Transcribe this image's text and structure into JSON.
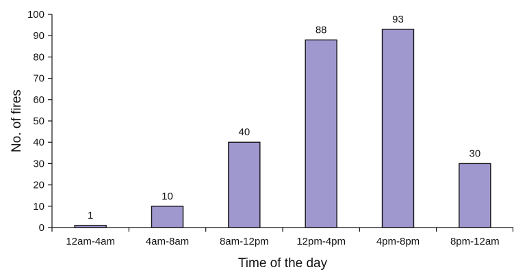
{
  "chart_data": {
    "type": "bar",
    "title": "",
    "xlabel": "Time of the day",
    "ylabel": "No. of fires",
    "categories": [
      "12am-4am",
      "4am-8am",
      "8am-12pm",
      "12pm-4pm",
      "4pm-8pm",
      "8pm-12am"
    ],
    "values": [
      1,
      10,
      40,
      88,
      93,
      30
    ],
    "data_labels": [
      "1",
      "10",
      "40",
      "88",
      "93",
      "30"
    ],
    "ylim": [
      0,
      100
    ],
    "y_ticks": [
      0,
      10,
      20,
      30,
      40,
      50,
      60,
      70,
      80,
      90,
      100
    ],
    "y_tick_labels": [
      "0",
      "10",
      "20",
      "30",
      "40",
      "50",
      "60",
      "70",
      "80",
      "90",
      "100"
    ],
    "grid": false,
    "legend": "none",
    "colors": {
      "bar_fill": "#9f98cf",
      "bar_stroke": "#111111",
      "axis": "#111111",
      "text": "#111111"
    }
  }
}
